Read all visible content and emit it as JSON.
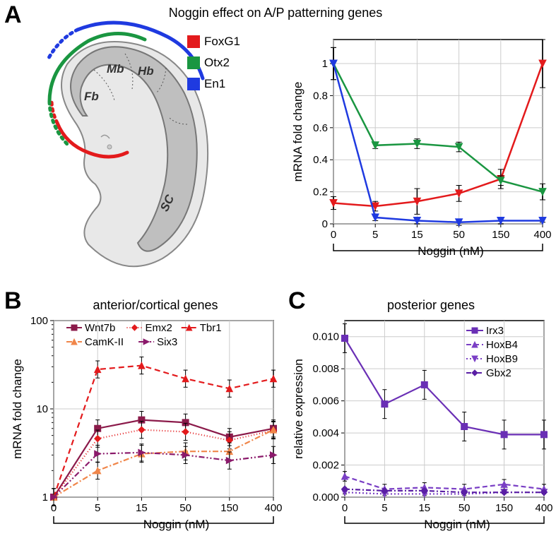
{
  "panelA": {
    "label": "A",
    "title": "Noggin effect on A/P patterning genes",
    "legend": [
      {
        "name": "FoxG1",
        "color": "#e31a1c"
      },
      {
        "name": "Otx2",
        "color": "#1a9641"
      },
      {
        "name": "En1",
        "color": "#1f3ae0"
      }
    ],
    "embryo_labels": {
      "fb": "Fb",
      "mb": "Mb",
      "hb": "Hb",
      "sc": "SC"
    },
    "chart": {
      "ylabel": "mRNA fold change",
      "xlabel": "Noggin (nM)",
      "xticks": [
        "0",
        "5",
        "15",
        "50",
        "150",
        "400"
      ],
      "ylim": [
        0,
        1.15
      ],
      "yticks": [
        0,
        0.2,
        0.4,
        0.6,
        0.8,
        1
      ],
      "grid_color": "#cccccc",
      "background": "#ffffff",
      "series": {
        "FoxG1": {
          "color": "#e31a1c",
          "values": [
            0.13,
            0.11,
            0.14,
            0.19,
            0.28,
            1.0
          ],
          "err": [
            0.04,
            0.03,
            0.08,
            0.05,
            0.06,
            0.15
          ]
        },
        "Otx2": {
          "color": "#1a9641",
          "values": [
            1.0,
            0.49,
            0.5,
            0.48,
            0.27,
            0.2
          ],
          "err": [
            0.1,
            0.02,
            0.03,
            0.03,
            0.03,
            0.05
          ]
        },
        "En1": {
          "color": "#1f3ae0",
          "values": [
            1.0,
            0.04,
            0.02,
            0.01,
            0.02,
            0.02
          ],
          "err": [
            0.1,
            0.02,
            0.02,
            0.02,
            0.02,
            0.01
          ]
        }
      }
    }
  },
  "panelB": {
    "label": "B",
    "title": "anterior/cortical genes",
    "ylabel": "mRNA  fold change",
    "xlabel": "Noggin (nM)",
    "xticks": [
      "0",
      "5",
      "15",
      "50",
      "150",
      "400"
    ],
    "yticks": [
      1,
      10,
      100
    ],
    "series": [
      {
        "name": "Wnt7b",
        "color": "#8b1a4a",
        "marker": "sq",
        "dash": "",
        "values": [
          1,
          6,
          7.5,
          7,
          4.8,
          6
        ]
      },
      {
        "name": "Emx2",
        "color": "#e31a1c",
        "marker": "diamond",
        "dash": "1,3",
        "values": [
          1,
          4.6,
          5.8,
          5.5,
          4.4,
          5.7
        ]
      },
      {
        "name": "Tbr1",
        "color": "#e31a1c",
        "marker": "tri",
        "dash": "8,5",
        "values": [
          1,
          28,
          31,
          22,
          17,
          22
        ]
      },
      {
        "name": "CamK-II",
        "color": "#f0864a",
        "marker": "tri",
        "dash": "8,3,2,3",
        "values": [
          1,
          2.0,
          3.1,
          3.3,
          3.3,
          5.8
        ]
      },
      {
        "name": "Six3",
        "color": "#8b1a6b",
        "marker": "tri-r",
        "dash": "8,3,2,3,2,3",
        "values": [
          1,
          3.1,
          3.2,
          3.0,
          2.6,
          3.0
        ]
      }
    ]
  },
  "panelC": {
    "label": "C",
    "title": "posterior genes",
    "ylabel": "relative expression",
    "xlabel": "Noggin (nM)",
    "xticks": [
      "0",
      "5",
      "15",
      "50",
      "150",
      "400"
    ],
    "yticks": [
      "0.000",
      "0.002",
      "0.004",
      "0.006",
      "0.008",
      "0.010"
    ],
    "ylim": [
      0,
      0.011
    ],
    "series": [
      {
        "name": "Irx3",
        "color": "#6a2fb5",
        "marker": "sq",
        "dash": "",
        "values": [
          0.0099,
          0.0058,
          0.007,
          0.0044,
          0.0039,
          0.0039
        ],
        "err": 0.0009
      },
      {
        "name": "HoxB4",
        "color": "#7a3fc5",
        "marker": "tri",
        "dash": "7,4",
        "values": [
          0.0013,
          0.0005,
          0.0006,
          0.0005,
          0.0008,
          0.0005
        ],
        "err": 0.0003
      },
      {
        "name": "HoxB9",
        "color": "#7a3fc5",
        "marker": "tri-d",
        "dash": "2,3",
        "values": [
          0.0003,
          0.0002,
          0.0002,
          0.0002,
          0.0003,
          0.0003
        ],
        "err": 0.0001
      },
      {
        "name": "Gbx2",
        "color": "#5a1fa5",
        "marker": "diamond",
        "dash": "7,3,2,3",
        "values": [
          0.0005,
          0.0004,
          0.0004,
          0.0003,
          0.0003,
          0.0003
        ],
        "err": 0.0001
      }
    ]
  }
}
